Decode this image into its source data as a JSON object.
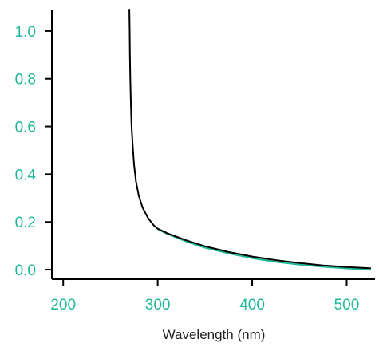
{
  "colors": {
    "accent": "#1fb89a",
    "series_teal": "#1fb89a",
    "series_black": "#000000",
    "axis": "#000000"
  },
  "chart_data": {
    "type": "line",
    "title": "",
    "xlabel": "Wavelength (nm)",
    "ylabel": "",
    "xlim": [
      188,
      530
    ],
    "ylim": [
      -0.04,
      1.09
    ],
    "x_ticks": [
      200,
      300,
      400,
      500
    ],
    "x_tick_labels": [
      "200",
      "300",
      "400",
      "500"
    ],
    "y_ticks": [
      0.0,
      0.2,
      0.4,
      0.6,
      0.8,
      1.0
    ],
    "y_tick_labels": [
      "0.0",
      "0.2",
      "0.4",
      "0.6",
      "0.8",
      "1.0"
    ],
    "grid": false,
    "legend": "none",
    "series": [
      {
        "color": "#1fb89a",
        "x": [
          300,
          310,
          330,
          350,
          375,
          400,
          425,
          450,
          475,
          500,
          525
        ],
        "y": [
          0.17,
          0.15,
          0.118,
          0.092,
          0.068,
          0.048,
          0.033,
          0.021,
          0.012,
          0.005,
          0.0
        ]
      },
      {
        "color": "#000000",
        "x": [
          270,
          270.3,
          270.6,
          271,
          271.6,
          272.4,
          273.5,
          275,
          277,
          280,
          284,
          290,
          296,
          300,
          310,
          330,
          350,
          375,
          400,
          425,
          450,
          475,
          500,
          525
        ],
        "y": [
          1.09,
          1.0,
          0.9,
          0.8,
          0.7,
          0.6,
          0.52,
          0.44,
          0.37,
          0.31,
          0.26,
          0.215,
          0.185,
          0.172,
          0.153,
          0.123,
          0.098,
          0.074,
          0.055,
          0.04,
          0.028,
          0.018,
          0.011,
          0.006
        ]
      }
    ]
  }
}
